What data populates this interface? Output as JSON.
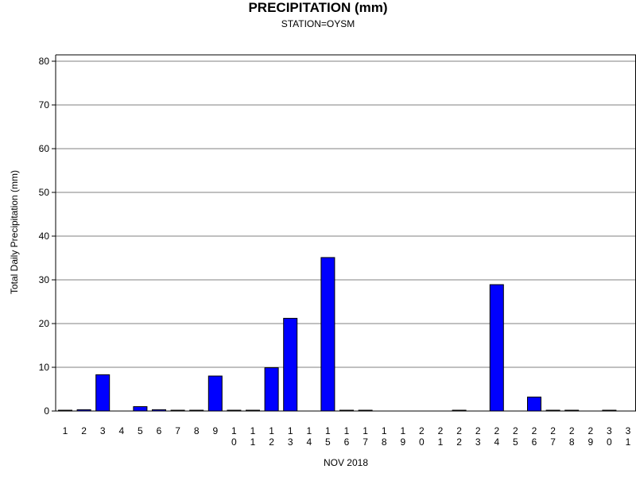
{
  "chart_data": {
    "type": "bar",
    "title": "PRECIPITATION (mm)",
    "subtitle": "STATION=OYSM",
    "xlabel": "NOV 2018",
    "ylabel": "Total Daily Precipitation (mm)",
    "ylim": [
      0,
      80
    ],
    "yticks": [
      0,
      10,
      20,
      30,
      40,
      50,
      60,
      70,
      80
    ],
    "grid": true,
    "bar_color": "#0000ff",
    "categories": [
      "1",
      "2",
      "3",
      "4",
      "5",
      "6",
      "7",
      "8",
      "9",
      "10",
      "11",
      "12",
      "13",
      "14",
      "15",
      "16",
      "17",
      "18",
      "19",
      "20",
      "21",
      "22",
      "23",
      "24",
      "25",
      "26",
      "27",
      "28",
      "29",
      "30",
      "31"
    ],
    "values": [
      0.1,
      0.3,
      8.3,
      null,
      1.0,
      0.3,
      0.1,
      0.1,
      8.0,
      0.1,
      0.1,
      9.9,
      21.2,
      null,
      35.1,
      0.1,
      0.1,
      null,
      null,
      null,
      null,
      0.1,
      null,
      28.9,
      null,
      3.2,
      0.1,
      0.1,
      null,
      0.1,
      null
    ]
  }
}
